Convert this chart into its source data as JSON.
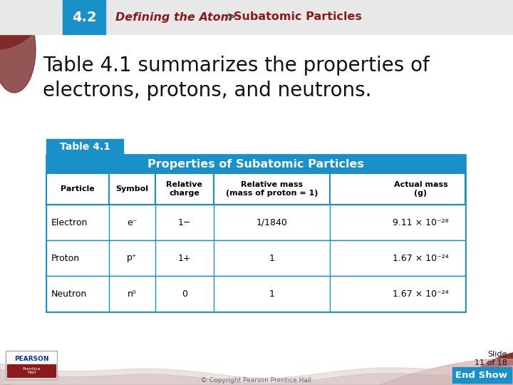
{
  "bg_color": "#ffffff",
  "header_bg": "#e8e8e8",
  "header_num": "4.2",
  "header_num_bg": "#1a90c8",
  "header_text_part1": "Defining the Atom",
  "header_gt": " > ",
  "header_text_part2": "Subatomic Particles",
  "header_text_color": "#8B1A1A",
  "main_text_line1": "Table 4.1 summarizes the properties of",
  "main_text_line2": "electrons, protons, and neutrons.",
  "table_blue": "#1a90c8",
  "table_title_text": "Table 4.1",
  "table_header_text": "Properties of Subatomic Particles",
  "col_headers": [
    "Particle",
    "Symbol",
    "Relative\ncharge",
    "Relative mass\n(mass of proton = 1)",
    "Actual mass\n(g)"
  ],
  "rows": [
    [
      "Electron",
      "e⁻",
      "1−",
      "1/1840",
      "9.11 × 10⁻²⁸"
    ],
    [
      "Proton",
      "p⁺",
      "1+",
      "1",
      "1.67 × 10⁻²⁴"
    ],
    [
      "Neutron",
      "n⁰",
      "0",
      "1",
      "1.67 × 10⁻²⁴"
    ]
  ],
  "footer_slide_text": "Slide\n11 of 18",
  "footer_end_text": "End Show",
  "copyright_text": "© Copyright Pearson Prentice Hall",
  "decor_color": "#8B3030",
  "footer_wave_color": "#c0a0a0",
  "pearson_blue": "#003399",
  "pearson_red": "#8B1A1A"
}
